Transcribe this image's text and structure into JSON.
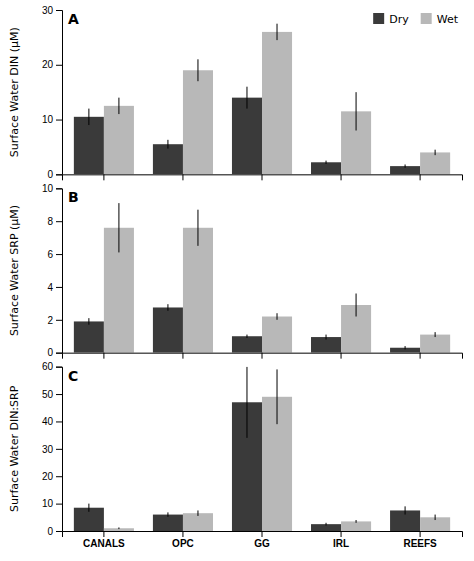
{
  "chart_data": [
    {
      "type": "bar",
      "title": "A",
      "ylabel": "Surface Water DIN (μM)",
      "categories": [
        "CANALS",
        "OPC",
        "GG",
        "IRL",
        "REEFS"
      ],
      "series": [
        {
          "name": "Dry",
          "color": "#3a3a3a",
          "values": [
            10.5,
            5.5,
            14.0,
            2.2,
            1.5
          ],
          "errors": [
            1.5,
            0.8,
            2.0,
            0.3,
            0.3
          ]
        },
        {
          "name": "Wet",
          "color": "#b8b8b8",
          "values": [
            12.5,
            19.0,
            26.0,
            11.5,
            4.0
          ],
          "errors": [
            1.5,
            2.0,
            1.5,
            3.5,
            0.5
          ]
        }
      ],
      "ylim": [
        0,
        30
      ],
      "yticks": [
        0,
        10,
        20,
        30
      ],
      "grid": false,
      "legend": "upper right",
      "tick_labels": "y"
    },
    {
      "type": "bar",
      "title": "B",
      "ylabel": "Surface Water SRP (μM)",
      "categories": [
        "CANALS",
        "OPC",
        "GG",
        "IRL",
        "REEFS"
      ],
      "series": [
        {
          "name": "Dry",
          "color": "#3a3a3a",
          "values": [
            1.9,
            2.75,
            1.0,
            0.95,
            0.3
          ],
          "errors": [
            0.2,
            0.2,
            0.1,
            0.15,
            0.1
          ]
        },
        {
          "name": "Wet",
          "color": "#b8b8b8",
          "values": [
            7.6,
            7.6,
            2.2,
            2.9,
            1.1
          ],
          "errors": [
            1.5,
            1.1,
            0.2,
            0.7,
            0.15
          ]
        }
      ],
      "ylim": [
        0,
        10
      ],
      "yticks": [
        0,
        2,
        4,
        6,
        8,
        10
      ],
      "grid": false,
      "tick_labels": "y"
    },
    {
      "type": "bar",
      "title": "C",
      "ylabel": "Surface Water DIN:SRP",
      "categories": [
        "CANALS",
        "OPC",
        "GG",
        "IRL",
        "REEFS"
      ],
      "series": [
        {
          "name": "Dry",
          "color": "#3a3a3a",
          "values": [
            8.5,
            6.0,
            47.0,
            2.5,
            7.5
          ],
          "errors": [
            1.5,
            0.8,
            13.0,
            0.5,
            1.5
          ]
        },
        {
          "name": "Wet",
          "color": "#b8b8b8",
          "values": [
            1.0,
            6.5,
            49.0,
            3.5,
            5.0
          ],
          "errors": [
            0.3,
            1.0,
            10.0,
            0.5,
            1.0
          ]
        }
      ],
      "ylim": [
        0,
        60
      ],
      "yticks": [
        0,
        10,
        20,
        30,
        40,
        50,
        60
      ],
      "grid": false
    }
  ]
}
